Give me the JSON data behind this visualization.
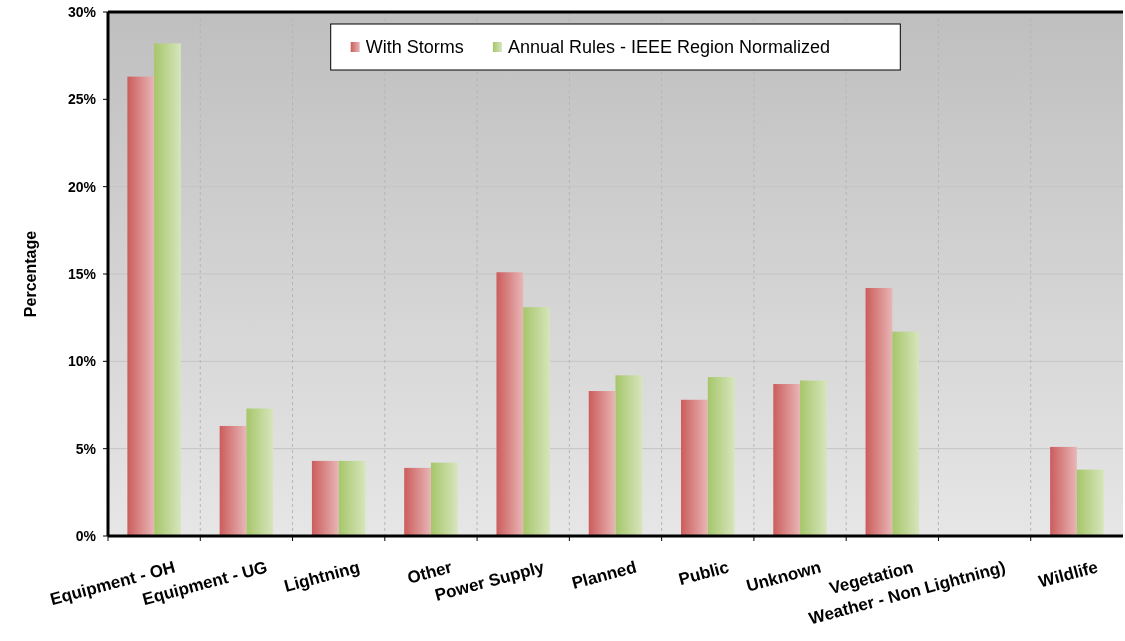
{
  "chart_data": {
    "type": "bar",
    "ylabel": "Percentage",
    "categories": [
      "Equipment - OH",
      "Equipment - UG",
      "Lightning",
      "Other",
      "Power Supply",
      "Planned",
      "Public",
      "Unknown",
      "Vegetation",
      "Weather - Non Lightning)",
      "Wildlife"
    ],
    "series": [
      {
        "name": "With Storms",
        "color": "#cc5c5c",
        "values": [
          26.3,
          6.3,
          4.3,
          3.9,
          15.1,
          8.3,
          7.8,
          8.7,
          14.2,
          0,
          5.1
        ]
      },
      {
        "name": "Annual Rules - IEEE Region Normalized",
        "color": "#a6c66a",
        "values": [
          28.2,
          7.3,
          4.3,
          4.2,
          13.1,
          9.2,
          9.1,
          8.9,
          11.7,
          0,
          3.8
        ]
      }
    ],
    "ylim": [
      0,
      30
    ],
    "yticks": [
      {
        "value": 0,
        "label": "0%"
      },
      {
        "value": 5,
        "label": "5%"
      },
      {
        "value": 10,
        "label": "10%"
      },
      {
        "value": 15,
        "label": "15%"
      },
      {
        "value": 20,
        "label": "20%"
      },
      {
        "value": 25,
        "label": "25%"
      },
      {
        "value": 30,
        "label": "30%"
      }
    ],
    "grid": true,
    "legend": "top"
  }
}
